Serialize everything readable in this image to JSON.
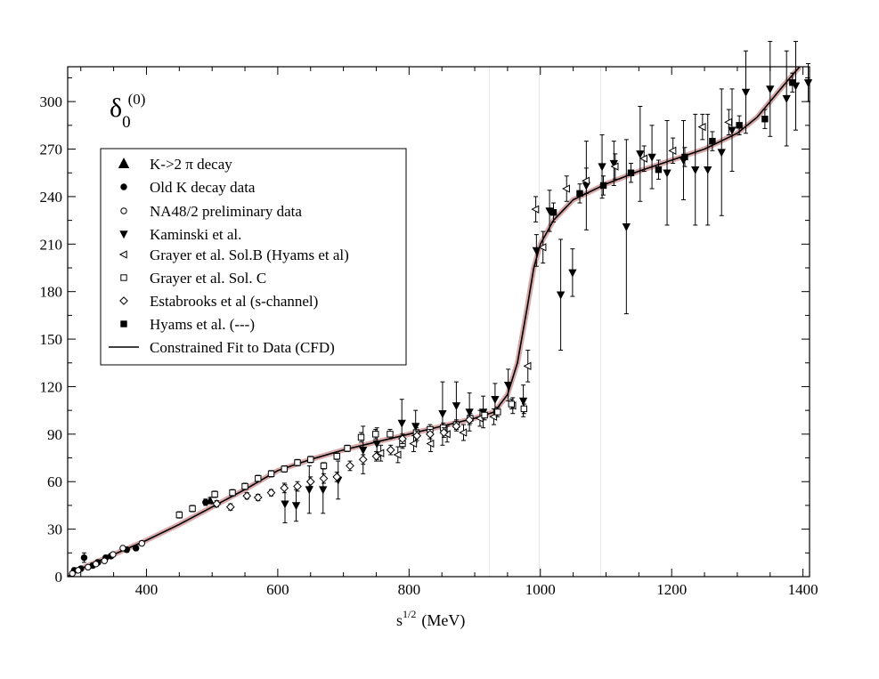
{
  "chart_data": {
    "type": "scatter",
    "title": "δ",
    "title_sub": "0",
    "title_sup": "(0)",
    "xlabel_base": "s",
    "xlabel_sup": "1/2",
    "xlabel_unit": "(MeV)",
    "xlim": [
      280,
      1410
    ],
    "ylim": [
      0,
      322
    ],
    "xticks": [
      400,
      600,
      800,
      1000,
      1200,
      1400
    ],
    "yticks": [
      0,
      30,
      60,
      90,
      120,
      150,
      180,
      210,
      240,
      270,
      300
    ],
    "legend_position": "upper-left",
    "legend": [
      {
        "label": "K->2 π  decay",
        "marker": "triangle-up-filled"
      },
      {
        "label": "Old K decay data",
        "marker": "circle-filled"
      },
      {
        "label": "NA48/2 preliminary data",
        "marker": "circle-open"
      },
      {
        "label": "Kaminski et al.",
        "marker": "triangle-down-filled"
      },
      {
        "label": "Grayer et al. Sol.B (Hyams et al)",
        "marker": "triangle-left-open"
      },
      {
        "label": "Grayer et al. Sol. C",
        "marker": "square-open"
      },
      {
        "label": "Estabrooks et al (s-channel)",
        "marker": "diamond-open"
      },
      {
        "label": "Hyams et al. (---)",
        "marker": "square-filled"
      },
      {
        "label": "Constrained Fit to Data (CFD)",
        "marker": "line"
      }
    ],
    "curve": {
      "name": "Constrained Fit to Data (CFD)",
      "x": [
        280,
        300,
        350,
        400,
        450,
        500,
        550,
        600,
        650,
        700,
        750,
        800,
        850,
        900,
        930,
        950,
        965,
        980,
        990,
        1000,
        1020,
        1050,
        1100,
        1150,
        1200,
        1250,
        1300,
        1330,
        1350,
        1370,
        1395
      ],
      "y": [
        0,
        5,
        14,
        23,
        33,
        44,
        55,
        67,
        74,
        80,
        85,
        90,
        95,
        100,
        104,
        115,
        135,
        170,
        195,
        210,
        225,
        238,
        248,
        256,
        263,
        270,
        280,
        290,
        300,
        310,
        322
      ],
      "band_halfwidth": 1.5
    },
    "series": [
      {
        "name": "K->2 π  decay",
        "marker": "triangle-up-filled",
        "points": [
          [
            497,
            48,
            2
          ]
        ]
      },
      {
        "name": "Old K decay data",
        "marker": "circle-filled",
        "points": [
          [
            290,
            4,
            1.5
          ],
          [
            300,
            5,
            1.5
          ],
          [
            305,
            12,
            3
          ],
          [
            318,
            7,
            1.5
          ],
          [
            326,
            9,
            1.5
          ],
          [
            338,
            12,
            1.5
          ],
          [
            346,
            13,
            1.5
          ],
          [
            370,
            17,
            1.5
          ],
          [
            384,
            18,
            1.5
          ],
          [
            490,
            47,
            2
          ]
        ]
      },
      {
        "name": "NA48/2 preliminary data",
        "marker": "circle-open",
        "points": [
          [
            287,
            2,
            1
          ],
          [
            296,
            4,
            1
          ],
          [
            311,
            6,
            1
          ],
          [
            323,
            8,
            1
          ],
          [
            336,
            10,
            1
          ],
          [
            349,
            14,
            1
          ],
          [
            364,
            18,
            1
          ],
          [
            393,
            21,
            1
          ]
        ]
      },
      {
        "name": "Kaminski et al.",
        "marker": "triangle-down-filled",
        "points": [
          [
            611,
            46,
            12
          ],
          [
            628,
            45,
            10
          ],
          [
            648,
            55,
            15
          ],
          [
            669,
            55,
            15
          ],
          [
            692,
            61,
            12
          ],
          [
            730,
            80,
            15
          ],
          [
            751,
            84,
            10
          ],
          [
            789,
            97,
            15
          ],
          [
            810,
            95,
            10
          ],
          [
            851,
            103,
            20
          ],
          [
            872,
            108,
            15
          ],
          [
            892,
            104,
            12
          ],
          [
            913,
            104,
            10
          ],
          [
            931,
            112,
            10
          ],
          [
            951,
            121,
            10
          ],
          [
            974,
            111,
            10
          ],
          [
            994,
            206,
            10
          ],
          [
            1014,
            231,
            13
          ],
          [
            1031,
            178,
            35
          ],
          [
            1049,
            192,
            15
          ],
          [
            1070,
            247,
            28
          ],
          [
            1094,
            259,
            20
          ],
          [
            1112,
            261,
            14
          ],
          [
            1131,
            221,
            55
          ],
          [
            1152,
            267,
            30
          ],
          [
            1170,
            265,
            20
          ],
          [
            1193,
            255,
            33
          ],
          [
            1218,
            263,
            25
          ],
          [
            1236,
            257,
            35
          ],
          [
            1255,
            257,
            35
          ],
          [
            1276,
            268,
            40
          ],
          [
            1292,
            282,
            26
          ],
          [
            1313,
            306,
            26
          ],
          [
            1350,
            308,
            30
          ],
          [
            1375,
            302,
            30
          ],
          [
            1389,
            310,
            28
          ],
          [
            1408,
            312,
            12
          ]
        ]
      },
      {
        "name": "Grayer et al. Sol.B (Hyams et al)",
        "marker": "triangle-left-open",
        "points": [
          [
            757,
            78,
            5
          ],
          [
            783,
            77,
            5
          ],
          [
            807,
            84,
            5
          ],
          [
            833,
            84,
            5
          ],
          [
            858,
            90,
            5
          ],
          [
            883,
            91,
            5
          ],
          [
            908,
            100,
            5
          ],
          [
            929,
            101,
            5
          ],
          [
            958,
            108,
            5
          ],
          [
            981,
            133,
            10
          ],
          [
            993,
            232,
            8
          ],
          [
            1004,
            208,
            10
          ],
          [
            1040,
            245,
            8
          ],
          [
            1070,
            250,
            8
          ],
          [
            1114,
            259,
            8
          ],
          [
            1158,
            264,
            8
          ],
          [
            1202,
            269,
            8
          ],
          [
            1247,
            284,
            8
          ],
          [
            1287,
            287,
            8
          ]
        ]
      },
      {
        "name": "Grayer et al. Sol. C",
        "marker": "square-open",
        "points": [
          [
            450,
            39,
            2
          ],
          [
            470,
            43,
            2
          ],
          [
            504,
            52,
            2
          ],
          [
            531,
            53,
            2
          ],
          [
            550,
            57,
            2
          ],
          [
            570,
            62,
            2
          ],
          [
            590,
            65,
            2
          ],
          [
            610,
            68,
            2
          ],
          [
            630,
            72,
            2
          ],
          [
            650,
            74,
            2
          ],
          [
            670,
            70,
            2
          ],
          [
            690,
            76,
            2
          ],
          [
            706,
            81,
            2
          ],
          [
            727,
            88,
            3
          ],
          [
            749,
            90,
            3
          ],
          [
            771,
            90,
            3
          ],
          [
            790,
            84,
            3
          ],
          [
            811,
            91,
            3
          ],
          [
            832,
            93,
            3
          ],
          [
            852,
            94,
            3
          ],
          [
            872,
            96,
            3
          ],
          [
            893,
            100,
            3
          ],
          [
            915,
            102,
            3
          ],
          [
            935,
            104,
            3
          ],
          [
            956,
            109,
            3
          ],
          [
            975,
            106,
            3
          ]
        ]
      },
      {
        "name": "Estabrooks et al (s-channel)",
        "marker": "diamond-open",
        "points": [
          [
            507,
            46,
            2
          ],
          [
            528,
            44,
            2
          ],
          [
            553,
            51,
            2
          ],
          [
            570,
            50,
            2
          ],
          [
            590,
            53,
            2
          ],
          [
            610,
            56,
            3
          ],
          [
            630,
            57,
            3
          ],
          [
            650,
            60,
            3
          ],
          [
            670,
            62,
            3
          ],
          [
            690,
            63,
            3
          ],
          [
            710,
            70,
            3
          ],
          [
            730,
            74,
            3
          ],
          [
            750,
            76,
            3
          ],
          [
            772,
            80,
            3
          ],
          [
            790,
            87,
            3
          ],
          [
            812,
            89,
            3
          ],
          [
            832,
            90,
            3
          ],
          [
            853,
            91,
            3
          ],
          [
            872,
            95,
            3
          ],
          [
            892,
            99,
            3
          ]
        ]
      },
      {
        "name": "Hyams et al. (---)",
        "marker": "square-filled",
        "points": [
          [
            1020,
            230,
            6
          ],
          [
            1060,
            242,
            6
          ],
          [
            1096,
            247,
            6
          ],
          [
            1138,
            255,
            6
          ],
          [
            1180,
            257,
            6
          ],
          [
            1220,
            265,
            6
          ],
          [
            1262,
            275,
            6
          ],
          [
            1303,
            285,
            6
          ],
          [
            1342,
            289,
            6
          ],
          [
            1384,
            312,
            6
          ]
        ]
      }
    ]
  }
}
